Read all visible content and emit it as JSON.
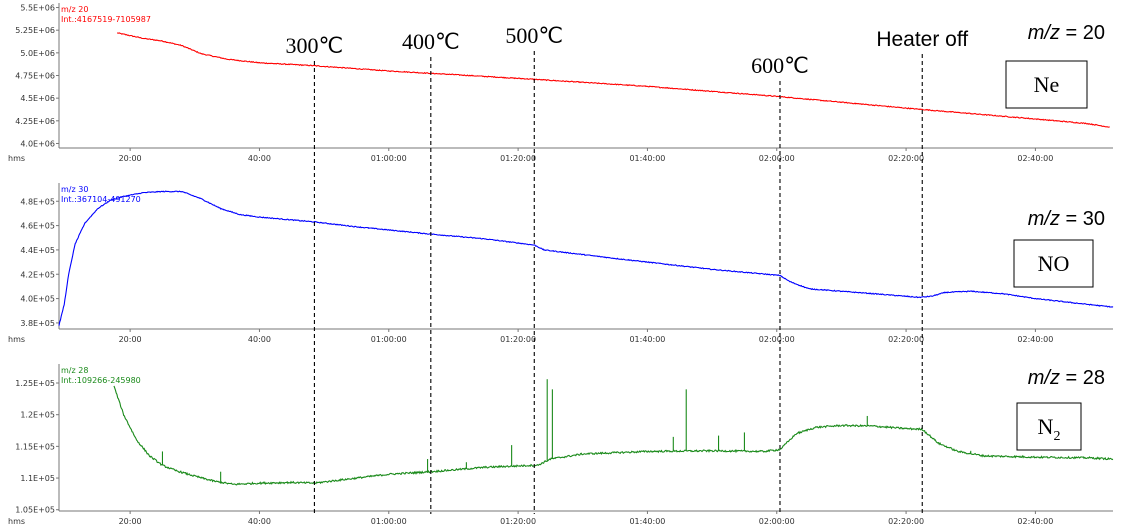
{
  "chart_data": {
    "type": "line",
    "x_label": "hms",
    "x_range_min": [
      9,
      172
    ],
    "x_ticks": [
      "20:00",
      "40:00",
      "01:00:00",
      "01:20:00",
      "01:40:00",
      "02:00:00",
      "02:20:00",
      "02:40:00"
    ],
    "x_tick_min": [
      20,
      40,
      60,
      80,
      100,
      120,
      140,
      160
    ],
    "annotations": [
      {
        "label": "300℃",
        "x_min": 48.5
      },
      {
        "label": "400℃",
        "x_min": 66.5
      },
      {
        "label": "500℃",
        "x_min": 82.5
      },
      {
        "label": "600℃",
        "x_min": 120.5
      },
      {
        "label": "Heater off",
        "x_min": 142.5
      }
    ],
    "panels": [
      {
        "mz_prefix": "m/z",
        "mz_value": "= 20",
        "species": "Ne",
        "species_sub": "",
        "color": "#ff0000",
        "legend_line1": "m/z 20",
        "legend_line2": "Int.:4167519-7105987",
        "ylim": [
          3950000.0,
          5550000.0
        ],
        "y_ticks": [
          "5.5E+06",
          "5.25E+06",
          "5.0E+06",
          "4.75E+06",
          "4.5E+06",
          "4.25E+06",
          "4.0E+06"
        ],
        "y_tick_values": [
          5500000.0,
          5250000.0,
          5000000.0,
          4750000.0,
          4500000.0,
          4250000.0,
          4000000.0
        ],
        "series": {
          "x": [
            18,
            22,
            25,
            28,
            31,
            35,
            40,
            48,
            60,
            70,
            82,
            100,
            120,
            140,
            160,
            168,
            171.5
          ],
          "y": [
            5220000.0,
            5160000.0,
            5130000.0,
            5080000.0,
            4990000.0,
            4930000.0,
            4890000.0,
            4860000.0,
            4800000.0,
            4760000.0,
            4710000.0,
            4630000.0,
            4520000.0,
            4390000.0,
            4270000.0,
            4220000.0,
            4180000.0
          ]
        }
      },
      {
        "mz_prefix": "m/z",
        "mz_value": "= 30",
        "species": "NO",
        "species_sub": "",
        "color": "#0000ff",
        "legend_line1": "m/z 30",
        "legend_line2": "Int.:367104-491270",
        "ylim": [
          375000.0,
          495000.0
        ],
        "y_ticks": [
          "4.8E+05",
          "4.6E+05",
          "4.4E+05",
          "4.2E+05",
          "4.0E+05",
          "3.8E+05"
        ],
        "y_tick_values": [
          480000.0,
          460000.0,
          440000.0,
          420000.0,
          400000.0,
          380000.0
        ],
        "series": {
          "x": [
            9,
            9.8,
            10.5,
            11.5,
            13,
            15,
            17,
            19,
            22,
            25,
            28,
            31,
            34,
            37,
            40,
            48.5,
            55,
            66.5,
            75,
            82.5,
            84,
            95,
            110,
            120.5,
            122,
            125,
            130,
            135,
            142,
            144,
            146,
            150,
            155,
            160,
            165,
            172
          ],
          "y": [
            378000.0,
            395000.0,
            420000.0,
            445000.0,
            462000.0,
            474000.0,
            481000.0,
            484000.0,
            487000.0,
            488000.0,
            488000.0,
            482000.0,
            474000.0,
            469000.0,
            467000.0,
            463000.0,
            459000.0,
            453000.0,
            449000.0,
            444000.0,
            440000.0,
            433000.0,
            424000.0,
            419000.0,
            414000.0,
            408000.0,
            406000.0,
            404000.0,
            401000.0,
            402000.0,
            405000.0,
            406000.0,
            404000.0,
            400000.0,
            397000.0,
            393000.0
          ]
        }
      },
      {
        "mz_prefix": "m/z",
        "mz_value": "= 28",
        "species": "N",
        "species_sub": "2",
        "color": "#1a8a1a",
        "legend_line1": "m/z 28",
        "legend_line2": "Int.:109266-245980",
        "ylim": [
          104800.0,
          128000.0
        ],
        "y_ticks": [
          "1.25E+05",
          "1.2E+05",
          "1.15E+05",
          "1.1E+05",
          "1.05E+05"
        ],
        "y_tick_values": [
          125000.0,
          120000.0,
          115000.0,
          110000.0,
          105000.0
        ],
        "series": {
          "x": [
            17.5,
            19,
            21,
            23,
            25,
            27,
            30,
            33,
            36,
            40,
            45,
            48.5,
            55,
            60,
            66.5,
            75,
            82,
            83,
            85,
            90,
            100,
            110,
            118,
            120.5,
            123,
            126,
            130,
            135,
            140,
            142.5,
            145,
            148,
            152,
            160,
            168,
            172
          ],
          "y": [
            124500.0,
            120000.0,
            116000.0,
            113500.0,
            112000.0,
            111200.0,
            110300.0,
            109500.0,
            109000.0,
            109200.0,
            109300.0,
            109200.0,
            110000.0,
            110600.0,
            111000.0,
            111700.0,
            112000.0,
            112000.0,
            113000.0,
            113800.0,
            114200.0,
            114300.0,
            114200.0,
            114500.0,
            117000.0,
            118000.0,
            118300.0,
            118200.0,
            117800.0,
            117700.0,
            115500.0,
            114200.0,
            113500.0,
            113300.0,
            113200.0,
            113000.0
          ]
        },
        "spikes": [
          {
            "x": 25,
            "top": 114200.0
          },
          {
            "x": 34,
            "top": 111000.0
          },
          {
            "x": 66,
            "top": 113000.0
          },
          {
            "x": 72,
            "top": 112500.0
          },
          {
            "x": 79,
            "top": 115200.0
          },
          {
            "x": 84.5,
            "top": 125600.0
          },
          {
            "x": 85.3,
            "top": 124000.0
          },
          {
            "x": 104,
            "top": 116500.0
          },
          {
            "x": 106,
            "top": 124000.0
          },
          {
            "x": 111,
            "top": 116700.0
          },
          {
            "x": 115,
            "top": 117200.0
          },
          {
            "x": 134,
            "top": 119800.0
          },
          {
            "x": 150,
            "top": 114300.0
          }
        ]
      }
    ]
  }
}
